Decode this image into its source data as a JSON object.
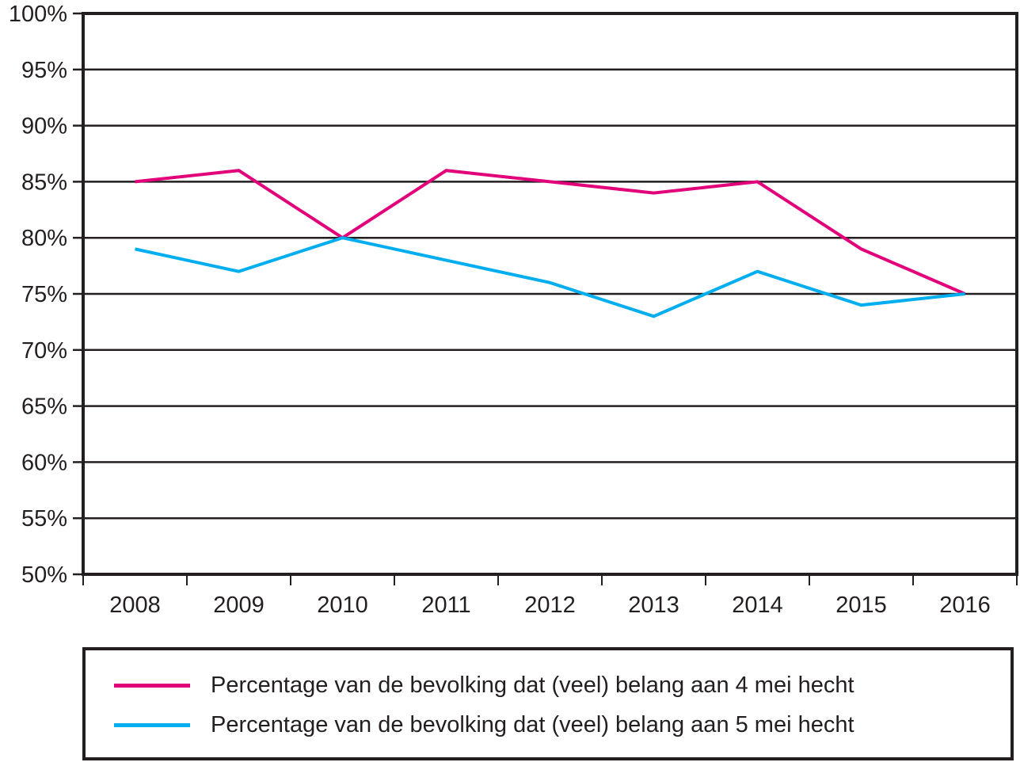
{
  "chart_data": {
    "type": "line",
    "title": "",
    "xlabel": "",
    "ylabel": "",
    "categories": [
      "2008",
      "2009",
      "2010",
      "2011",
      "2012",
      "2013",
      "2014",
      "2015",
      "2016"
    ],
    "ylim": [
      50,
      100
    ],
    "yticks": [
      50,
      55,
      60,
      65,
      70,
      75,
      80,
      85,
      90,
      95,
      100
    ],
    "ytick_labels": [
      "50%",
      "55%",
      "60%",
      "65%",
      "70%",
      "75%",
      "80%",
      "85%",
      "90%",
      "95%",
      "100%"
    ],
    "grid": true,
    "legend_position": "bottom",
    "series": [
      {
        "name": "Percentage van de bevolking dat (veel) belang aan 4 mei hecht",
        "color": "#e2007a",
        "values": [
          85,
          86,
          80,
          86,
          85,
          84,
          85,
          79,
          75
        ]
      },
      {
        "name": "Percentage van de bevolking dat (veel) belang aan 5 mei hecht",
        "color": "#00aeef",
        "values": [
          79,
          77,
          80,
          78,
          76,
          73,
          77,
          74,
          75
        ]
      }
    ]
  }
}
